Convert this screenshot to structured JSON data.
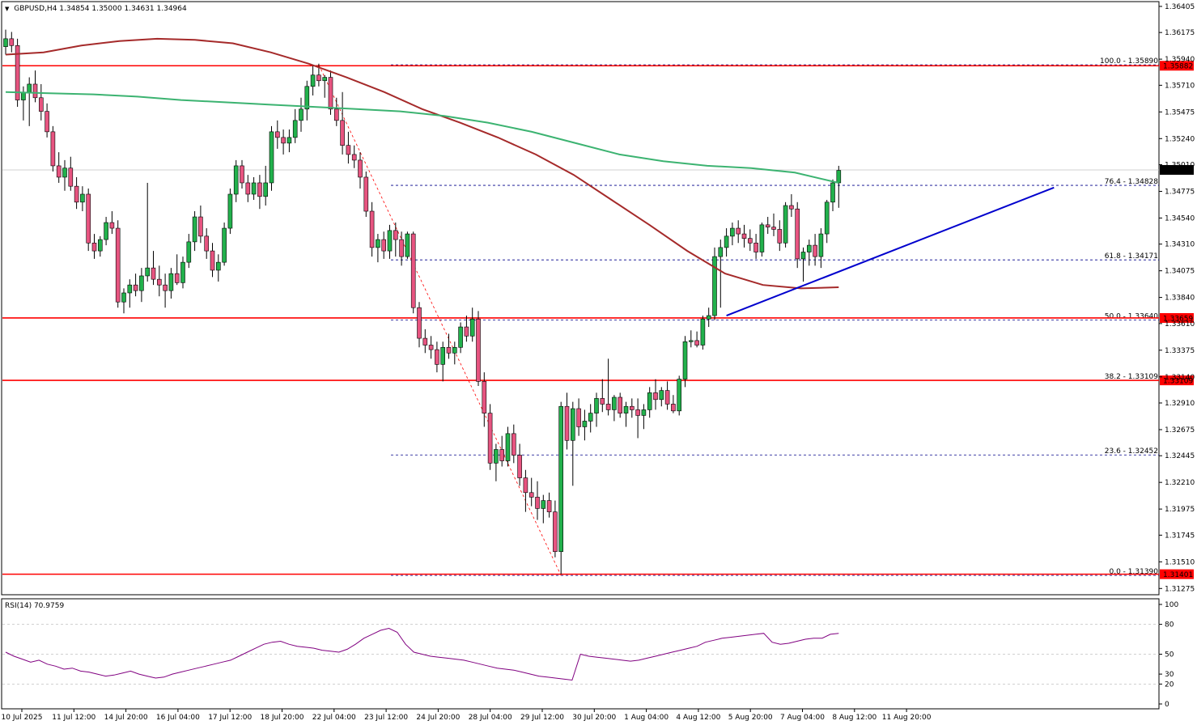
{
  "header": {
    "symbol_line": "GBPUSD,H4  1.34854 1.35000 1.34631 1.34964",
    "arrow": "▼"
  },
  "chart_data": [
    {
      "type": "candlestick",
      "symbol": "GBPUSD",
      "timeframe": "H4",
      "ohlc_last": {
        "open": 1.34854,
        "high": 1.35,
        "low": 1.34631,
        "close": 1.34964
      },
      "ylim": [
        1.3122,
        1.3644
      ],
      "y_ticks": [
        "1.36405",
        "1.36175",
        "1.35940",
        "1.35710",
        "1.35475",
        "1.35240",
        "1.35010",
        "1.34775",
        "1.34540",
        "1.34310",
        "1.34075",
        "1.33840",
        "1.33610",
        "1.33375",
        "1.33140",
        "1.32910",
        "1.32675",
        "1.32445",
        "1.32210",
        "1.31975",
        "1.31745",
        "1.31510",
        "1.31275"
      ],
      "x_ticks": [
        "10 Jul 2025",
        "11 Jul 12:00",
        "14 Jul 20:00",
        "16 Jul 04:00",
        "17 Jul 12:00",
        "18 Jul 20:00",
        "22 Jul 04:00",
        "23 Jul 12:00",
        "24 Jul 20:00",
        "28 Jul 04:00",
        "29 Jul 12:00",
        "30 Jul 20:00",
        "1 Aug 04:00",
        "4 Aug 12:00",
        "5 Aug 20:00",
        "7 Aug 04:00",
        "8 Aug 12:00",
        "11 Aug 20:00"
      ],
      "bullish_color": "#22b14c",
      "bearish_color": "#e75480",
      "candles": [
        [
          1.3605,
          1.362,
          1.3598,
          1.3612
        ],
        [
          1.3612,
          1.3618,
          1.36,
          1.3606
        ],
        [
          1.3606,
          1.3612,
          1.3552,
          1.3558
        ],
        [
          1.3558,
          1.357,
          1.354,
          1.3565
        ],
        [
          1.3565,
          1.3578,
          1.3535,
          1.3572
        ],
        [
          1.3572,
          1.3584,
          1.3556,
          1.356
        ],
        [
          1.356,
          1.3572,
          1.354,
          1.3548
        ],
        [
          1.3548,
          1.3555,
          1.3525,
          1.353
        ],
        [
          1.353,
          1.3535,
          1.3495,
          1.35
        ],
        [
          1.35,
          1.3512,
          1.3485,
          1.349
        ],
        [
          1.349,
          1.3505,
          1.3478,
          1.3498
        ],
        [
          1.3498,
          1.3508,
          1.3478,
          1.3482
        ],
        [
          1.3482,
          1.349,
          1.3462,
          1.3468
        ],
        [
          1.3468,
          1.3482,
          1.346,
          1.3475
        ],
        [
          1.3475,
          1.348,
          1.3425,
          1.3432
        ],
        [
          1.3432,
          1.344,
          1.3418,
          1.3425
        ],
        [
          1.3425,
          1.3438,
          1.342,
          1.3435
        ],
        [
          1.3435,
          1.3455,
          1.343,
          1.345
        ],
        [
          1.345,
          1.346,
          1.344,
          1.3445
        ],
        [
          1.3445,
          1.3452,
          1.3375,
          1.338
        ],
        [
          1.338,
          1.3392,
          1.337,
          1.3388
        ],
        [
          1.3388,
          1.34,
          1.3375,
          1.3395
        ],
        [
          1.3395,
          1.3405,
          1.3385,
          1.339
        ],
        [
          1.339,
          1.341,
          1.338,
          1.3403
        ],
        [
          1.3403,
          1.3485,
          1.3398,
          1.341
        ],
        [
          1.341,
          1.3425,
          1.3395,
          1.34
        ],
        [
          1.34,
          1.3412,
          1.3385,
          1.3395
        ],
        [
          1.3395,
          1.3405,
          1.3375,
          1.339
        ],
        [
          1.339,
          1.341,
          1.3383,
          1.3405
        ],
        [
          1.3405,
          1.3422,
          1.3395,
          1.3397
        ],
        [
          1.3397,
          1.342,
          1.3392,
          1.3415
        ],
        [
          1.3415,
          1.344,
          1.341,
          1.3433
        ],
        [
          1.3433,
          1.346,
          1.3425,
          1.3455
        ],
        [
          1.3455,
          1.3465,
          1.3432,
          1.3438
        ],
        [
          1.3438,
          1.3445,
          1.3418,
          1.3425
        ],
        [
          1.3425,
          1.3432,
          1.3402,
          1.3408
        ],
        [
          1.3408,
          1.3422,
          1.3398,
          1.3415
        ],
        [
          1.3415,
          1.345,
          1.3412,
          1.3445
        ],
        [
          1.3445,
          1.348,
          1.344,
          1.3475
        ],
        [
          1.3475,
          1.3505,
          1.3468,
          1.35
        ],
        [
          1.35,
          1.3505,
          1.348,
          1.3485
        ],
        [
          1.3485,
          1.3492,
          1.3468,
          1.3475
        ],
        [
          1.3475,
          1.349,
          1.347,
          1.3485
        ],
        [
          1.3485,
          1.3492,
          1.3462,
          1.3473
        ],
        [
          1.3473,
          1.35,
          1.3465,
          1.3485
        ],
        [
          1.3485,
          1.3535,
          1.3478,
          1.353
        ],
        [
          1.353,
          1.354,
          1.3515,
          1.3525
        ],
        [
          1.3525,
          1.3532,
          1.351,
          1.352
        ],
        [
          1.352,
          1.3532,
          1.3512,
          1.3525
        ],
        [
          1.3525,
          1.355,
          1.352,
          1.354
        ],
        [
          1.354,
          1.356,
          1.353,
          1.355
        ],
        [
          1.355,
          1.3575,
          1.354,
          1.357
        ],
        [
          1.357,
          1.3588,
          1.3562,
          1.358
        ],
        [
          1.358,
          1.359,
          1.357,
          1.3575
        ],
        [
          1.3575,
          1.358,
          1.356,
          1.3578
        ],
        [
          1.3578,
          1.3584,
          1.3545,
          1.355
        ],
        [
          1.355,
          1.356,
          1.3535,
          1.354
        ],
        [
          1.354,
          1.3565,
          1.351,
          1.3518
        ],
        [
          1.3518,
          1.353,
          1.3502,
          1.351
        ],
        [
          1.351,
          1.3518,
          1.3498,
          1.3505
        ],
        [
          1.3505,
          1.3512,
          1.348,
          1.349
        ],
        [
          1.349,
          1.3495,
          1.3455,
          1.346
        ],
        [
          1.346,
          1.3468,
          1.342,
          1.3428
        ],
        [
          1.3428,
          1.344,
          1.3415,
          1.3435
        ],
        [
          1.3435,
          1.3442,
          1.3418,
          1.3425
        ],
        [
          1.3425,
          1.3448,
          1.3418,
          1.3443
        ],
        [
          1.3443,
          1.345,
          1.342,
          1.3435
        ],
        [
          1.3435,
          1.3442,
          1.3412,
          1.342
        ],
        [
          1.342,
          1.3442,
          1.3418,
          1.344
        ],
        [
          1.344,
          1.3442,
          1.337,
          1.3375
        ],
        [
          1.3375,
          1.338,
          1.334,
          1.3348
        ],
        [
          1.3348,
          1.3356,
          1.3335,
          1.3342
        ],
        [
          1.3342,
          1.335,
          1.333,
          1.3338
        ],
        [
          1.3338,
          1.3345,
          1.3318,
          1.3325
        ],
        [
          1.3325,
          1.3345,
          1.331,
          1.334
        ],
        [
          1.334,
          1.3352,
          1.333,
          1.3335
        ],
        [
          1.3335,
          1.3345,
          1.3325,
          1.334
        ],
        [
          1.334,
          1.3362,
          1.3335,
          1.3358
        ],
        [
          1.3358,
          1.3368,
          1.3345,
          1.335
        ],
        [
          1.335,
          1.3375,
          1.3345,
          1.3365
        ],
        [
          1.3365,
          1.3372,
          1.3306,
          1.331
        ],
        [
          1.331,
          1.3318,
          1.327,
          1.3282
        ],
        [
          1.3282,
          1.329,
          1.3232,
          1.3238
        ],
        [
          1.3238,
          1.3255,
          1.3222,
          1.325
        ],
        [
          1.325,
          1.3262,
          1.3235,
          1.324
        ],
        [
          1.324,
          1.327,
          1.3235,
          1.3264
        ],
        [
          1.3264,
          1.3272,
          1.3238,
          1.3245
        ],
        [
          1.3245,
          1.3255,
          1.3218,
          1.3225
        ],
        [
          1.3225,
          1.3232,
          1.3195,
          1.3212
        ],
        [
          1.3212,
          1.3225,
          1.32,
          1.3208
        ],
        [
          1.3208,
          1.3222,
          1.3188,
          1.3198
        ],
        [
          1.3198,
          1.321,
          1.3185,
          1.3205
        ],
        [
          1.3205,
          1.3212,
          1.319,
          1.3195
        ],
        [
          1.3195,
          1.3205,
          1.3155,
          1.316
        ],
        [
          1.316,
          1.3292,
          1.314,
          1.3288
        ],
        [
          1.3288,
          1.33,
          1.325,
          1.3258
        ],
        [
          1.3258,
          1.3292,
          1.3218,
          1.3286
        ],
        [
          1.3286,
          1.3295,
          1.3262,
          1.327
        ],
        [
          1.327,
          1.3285,
          1.3258,
          1.3275
        ],
        [
          1.3275,
          1.329,
          1.3265,
          1.3282
        ],
        [
          1.3282,
          1.33,
          1.327,
          1.3295
        ],
        [
          1.3295,
          1.3312,
          1.3283,
          1.329
        ],
        [
          1.329,
          1.333,
          1.328,
          1.3285
        ],
        [
          1.3285,
          1.3298,
          1.3275,
          1.3296
        ],
        [
          1.3296,
          1.33,
          1.3278,
          1.3282
        ],
        [
          1.3282,
          1.3292,
          1.327,
          1.3288
        ],
        [
          1.3288,
          1.3295,
          1.3278,
          1.3285
        ],
        [
          1.3285,
          1.3295,
          1.326,
          1.328
        ],
        [
          1.328,
          1.329,
          1.3268,
          1.3285
        ],
        [
          1.3285,
          1.3305,
          1.3278,
          1.33
        ],
        [
          1.33,
          1.3312,
          1.3285,
          1.3294
        ],
        [
          1.3294,
          1.3305,
          1.3288,
          1.3302
        ],
        [
          1.3302,
          1.331,
          1.3285,
          1.329
        ],
        [
          1.329,
          1.3298,
          1.3282,
          1.3284
        ],
        [
          1.3284,
          1.3315,
          1.328,
          1.3312
        ],
        [
          1.3312,
          1.335,
          1.3305,
          1.3345
        ],
        [
          1.3345,
          1.3355,
          1.334,
          1.3346
        ],
        [
          1.3346,
          1.3354,
          1.334,
          1.3342
        ],
        [
          1.3342,
          1.3368,
          1.3338,
          1.3365
        ],
        [
          1.3365,
          1.3375,
          1.3358,
          1.3368
        ],
        [
          1.3368,
          1.3428,
          1.3364,
          1.342
        ],
        [
          1.342,
          1.3435,
          1.3375,
          1.3428
        ],
        [
          1.3428,
          1.3445,
          1.342,
          1.3438
        ],
        [
          1.3438,
          1.345,
          1.343,
          1.3445
        ],
        [
          1.3445,
          1.3452,
          1.3432,
          1.344
        ],
        [
          1.344,
          1.3448,
          1.3428,
          1.3436
        ],
        [
          1.3436,
          1.3444,
          1.3425,
          1.3432
        ],
        [
          1.3432,
          1.344,
          1.3418,
          1.3424
        ],
        [
          1.3424,
          1.345,
          1.342,
          1.3448
        ],
        [
          1.3448,
          1.3455,
          1.344,
          1.3446
        ],
        [
          1.3446,
          1.3458,
          1.3438,
          1.3444
        ],
        [
          1.3444,
          1.3452,
          1.3425,
          1.3432
        ],
        [
          1.3432,
          1.3468,
          1.3428,
          1.3465
        ],
        [
          1.3465,
          1.3475,
          1.3455,
          1.3462
        ],
        [
          1.3462,
          1.3468,
          1.341,
          1.3418
        ],
        [
          1.3418,
          1.3428,
          1.3398,
          1.3424
        ],
        [
          1.3424,
          1.3435,
          1.3412,
          1.343
        ],
        [
          1.343,
          1.344,
          1.3412,
          1.342
        ],
        [
          1.342,
          1.3445,
          1.341,
          1.344
        ],
        [
          1.344,
          1.347,
          1.3432,
          1.3468
        ],
        [
          1.3468,
          1.3488,
          1.346,
          1.3485
        ],
        [
          1.3485,
          1.35,
          1.3463,
          1.3496
        ]
      ],
      "moving_averages": [
        {
          "color": "#a52a2a",
          "values": [
            1.3598,
            1.36,
            1.3606,
            1.361,
            1.3612,
            1.3611,
            1.3608,
            1.36,
            1.359,
            1.3578,
            1.3565,
            1.355,
            1.3538,
            1.3525,
            1.351,
            1.3492,
            1.347,
            1.3448,
            1.3425,
            1.3405,
            1.3395,
            1.3392,
            1.3393
          ]
        },
        {
          "color": "#3cb371",
          "values": [
            1.3565,
            1.3564,
            1.3563,
            1.3561,
            1.3558,
            1.3556,
            1.3554,
            1.3552,
            1.355,
            1.3548,
            1.3544,
            1.3538,
            1.353,
            1.352,
            1.351,
            1.3504,
            1.35,
            1.3498,
            1.3494,
            1.3485
          ]
        }
      ],
      "horizontal_levels": [
        {
          "value": 1.35882,
          "label": "1.35882",
          "color": "#ff0000"
        },
        {
          "value": 1.33659,
          "label": "1.33659",
          "color": "#ff0000"
        },
        {
          "value": 1.33109,
          "label": "1.33109",
          "color": "#ff0000"
        },
        {
          "value": 1.31401,
          "label": "1.31401",
          "color": "#ff0000"
        }
      ],
      "current_price": {
        "value": 1.34964,
        "label": "1.34964"
      },
      "fibonacci": [
        {
          "label": "100.0 - 1.35890",
          "value": 1.3589
        },
        {
          "label": "76.4 - 1.34828",
          "value": 1.34828
        },
        {
          "label": "61.8 - 1.34171",
          "value": 1.34171
        },
        {
          "label": "50.0 - 1.33640",
          "value": 1.3364
        },
        {
          "label": "38.2 - 1.33109",
          "value": 1.33109
        },
        {
          "label": "23.6 - 1.32452",
          "value": 1.32452
        },
        {
          "label": "0.0 - 1.31390",
          "value": 1.3139
        }
      ],
      "trendline": {
        "from": {
          "candle": 122,
          "price": 1.3368
        },
        "to": {
          "candle": 161,
          "price": 1.3468
        },
        "color": "#0000cd"
      }
    },
    {
      "type": "line",
      "title": "RSI(14) 70.9759",
      "ylim": [
        0,
        100
      ],
      "y_ticks": [
        "100",
        "80",
        "50",
        "30",
        "20",
        "0"
      ],
      "levels": [
        80,
        50,
        20
      ],
      "line_color": "#800080",
      "values": [
        52,
        48,
        45,
        42,
        44,
        40,
        38,
        35,
        36,
        33,
        32,
        30,
        28,
        29,
        31,
        33,
        30,
        28,
        26,
        27,
        30,
        32,
        34,
        36,
        38,
        40,
        42,
        44,
        48,
        52,
        56,
        60,
        62,
        63,
        60,
        58,
        57,
        56,
        54,
        53,
        52,
        55,
        60,
        66,
        70,
        74,
        76,
        72,
        60,
        52,
        50,
        48,
        47,
        46,
        45,
        44,
        42,
        40,
        38,
        36,
        35,
        34,
        32,
        30,
        28,
        27,
        26,
        25,
        24,
        50,
        48,
        47,
        46,
        45,
        44,
        43,
        44,
        46,
        48,
        50,
        52,
        54,
        56,
        58,
        62,
        64,
        66,
        67,
        68,
        69,
        70,
        71,
        62,
        60,
        61,
        63,
        65,
        66,
        66,
        70,
        71
      ]
    }
  ]
}
